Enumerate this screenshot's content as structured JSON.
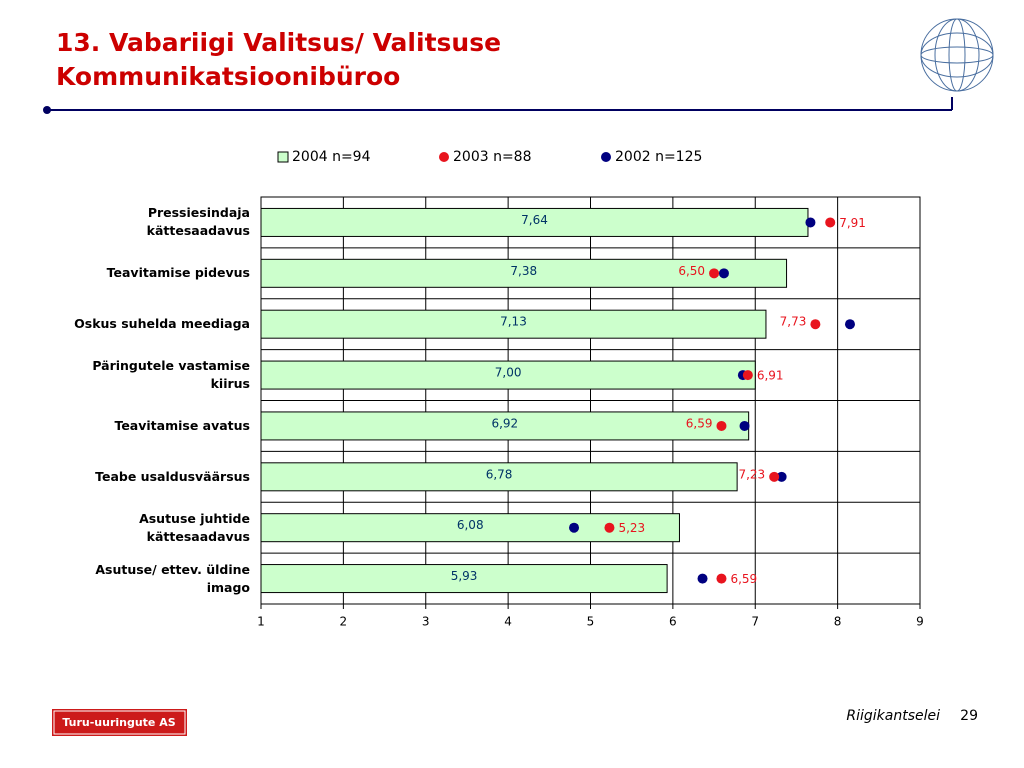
{
  "title": [
    "13. Vabariigi Valitsus/ Valitsuse",
    "Kommunikatsioonibüroo"
  ],
  "footer": {
    "source": "Riigikantselei",
    "page": "29",
    "logo": "Turu-uuringute AS"
  },
  "chart_data": {
    "type": "bar",
    "orientation": "horizontal",
    "categories": [
      "Pressiesindaja\nkättesaadavus",
      "Teavitamise pidevus",
      "Oskus suhelda meediaga",
      "Päringutele vastamise\nkiirus",
      "Teavitamise avatus",
      "Teabe usaldusväärsus",
      "Asutuse juhtide\nkättesaadavus",
      "Asutuse/ ettev. üldine\nimago"
    ],
    "series": [
      {
        "name": "2004 n=94",
        "color": "#ccffcc",
        "values": [
          7.64,
          7.38,
          7.13,
          7.0,
          6.92,
          6.78,
          6.08,
          5.93
        ],
        "value_labels": [
          "7,64",
          "7,38",
          "7,13",
          "7,00",
          "6,92",
          "6,78",
          "6,08",
          "5,93"
        ]
      },
      {
        "name": "2003 n=88",
        "color": "#e8141e",
        "values": [
          7.91,
          6.5,
          7.73,
          6.91,
          6.59,
          7.23,
          5.23,
          6.59
        ],
        "value_labels": [
          "7,91",
          "6,50",
          "7,73",
          "6,91",
          "6,59",
          "7,23",
          "5,23",
          "6,59"
        ]
      },
      {
        "name": "2002 n=125",
        "color": "#000080",
        "values": [
          7.67,
          6.62,
          8.15,
          6.85,
          6.87,
          7.32,
          4.8,
          6.36
        ]
      }
    ],
    "xlim": [
      1,
      9
    ],
    "xticks": [
      1,
      2,
      3,
      4,
      5,
      6,
      7,
      8,
      9
    ],
    "grid": true
  }
}
